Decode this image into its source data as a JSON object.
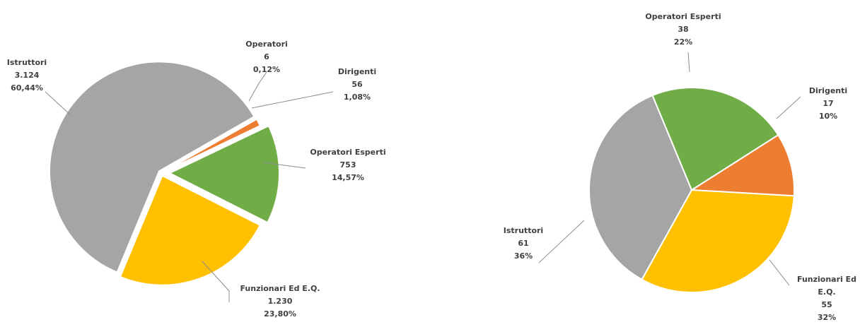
{
  "chart_data": [
    {
      "type": "pie",
      "slices": [
        {
          "name": "Operatori",
          "value": 6,
          "value_label": "6",
          "percent_label": "0,12%",
          "percent": 0.12,
          "color": "#4472c4"
        },
        {
          "name": "Dirigenti",
          "value": 56,
          "value_label": "56",
          "percent_label": "1,08%",
          "percent": 1.08,
          "color": "#ed7d31"
        },
        {
          "name": "Operatori Esperti",
          "value": 753,
          "value_label": "753",
          "percent_label": "14,57%",
          "percent": 14.57,
          "color": "#70ad47"
        },
        {
          "name": "Funzionari Ed E.Q.",
          "value": 1230,
          "value_label": "1.230",
          "percent_label": "23,80%",
          "percent": 23.8,
          "color": "#ffc000"
        },
        {
          "name": "Istruttori",
          "value": 3124,
          "value_label": "3.124",
          "percent_label": "60,44%",
          "percent": 60.44,
          "color": "#a5a5a5"
        }
      ]
    },
    {
      "type": "pie",
      "slices": [
        {
          "name": "Dirigenti",
          "value": 17,
          "value_label": "17",
          "percent_label": "10%",
          "percent": 10,
          "color": "#ed7d31"
        },
        {
          "name": "Funzionari Ed E.Q.",
          "value": 55,
          "value_label": "55",
          "percent_label": "32%",
          "percent": 32,
          "color": "#ffc000"
        },
        {
          "name": "Istruttori",
          "value": 61,
          "value_label": "61",
          "percent_label": "36%",
          "percent": 36,
          "color": "#a5a5a5"
        },
        {
          "name": "Operatori Esperti",
          "value": 38,
          "value_label": "38",
          "percent_label": "22%",
          "percent": 22,
          "color": "#70ad47"
        }
      ]
    }
  ]
}
